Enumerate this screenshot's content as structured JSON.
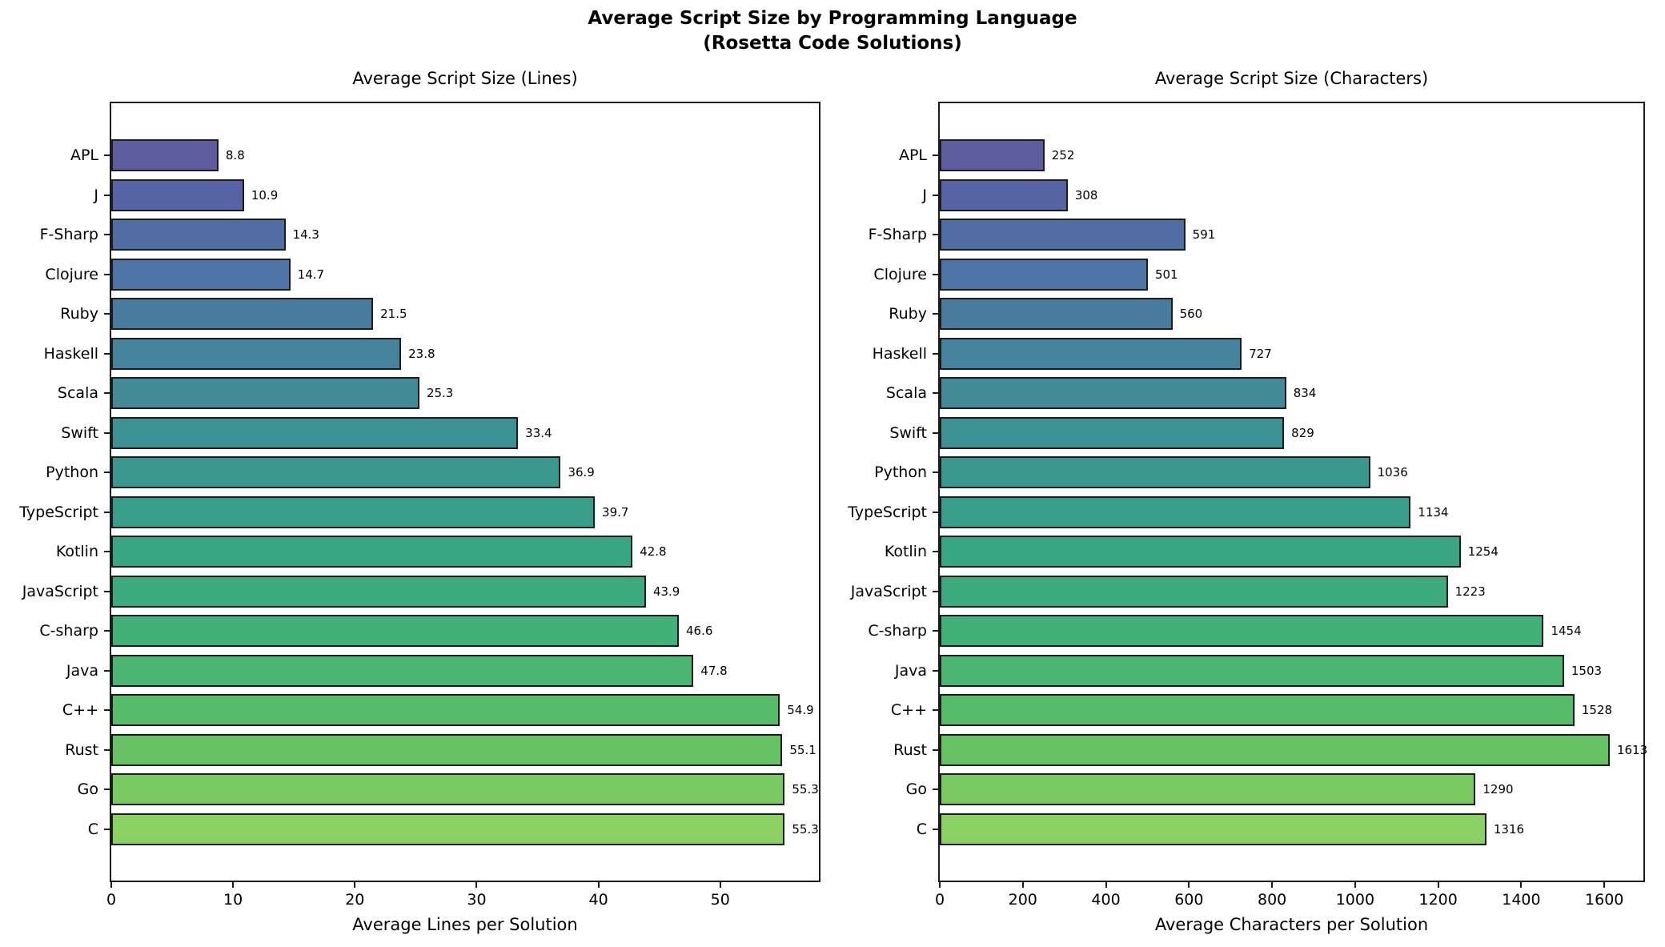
{
  "suptitle_line1": "Average Script Size by Programming Language",
  "suptitle_line2": "(Rosetta Code Solutions)",
  "text_color": "#000000",
  "bar_edge_color": "#1c1c1c",
  "palette": [
    "#5c5c9e",
    "#5663a5",
    "#516da4",
    "#4d74a4",
    "#497b9f",
    "#44839b",
    "#418a96",
    "#3e9192",
    "#3b988e",
    "#399e89",
    "#38a585",
    "#3bab7e",
    "#41b077",
    "#4ab671",
    "#56bc69",
    "#65c263",
    "#78c95f",
    "#8bd064"
  ],
  "chart_data": [
    {
      "type": "bar",
      "orientation": "horizontal",
      "title": "Average Script Size (Lines)",
      "xlabel": "Average Lines per Solution",
      "grid": false,
      "legend_position": "none",
      "categories": [
        "APL",
        "J",
        "F-Sharp",
        "Clojure",
        "Ruby",
        "Haskell",
        "Scala",
        "Swift",
        "Python",
        "TypeScript",
        "Kotlin",
        "JavaScript",
        "C-sharp",
        "Java",
        "C++",
        "Rust",
        "Go",
        "C"
      ],
      "values": [
        8.8,
        10.9,
        14.3,
        14.7,
        21.5,
        23.8,
        25.3,
        33.4,
        36.9,
        39.7,
        42.8,
        43.9,
        46.6,
        47.8,
        54.9,
        55.1,
        55.3,
        55.3
      ],
      "value_labels": [
        "8.8",
        "10.9",
        "14.3",
        "14.7",
        "21.5",
        "23.8",
        "25.3",
        "33.4",
        "36.9",
        "39.7",
        "42.8",
        "43.9",
        "46.6",
        "47.8",
        "54.9",
        "55.1",
        "55.3",
        "55.3"
      ],
      "xlim": [
        0,
        58.1
      ],
      "xticks": [
        0,
        10,
        20,
        30,
        40,
        50
      ]
    },
    {
      "type": "bar",
      "orientation": "horizontal",
      "title": "Average Script Size (Characters)",
      "xlabel": "Average Characters per Solution",
      "grid": false,
      "legend_position": "none",
      "categories": [
        "APL",
        "J",
        "F-Sharp",
        "Clojure",
        "Ruby",
        "Haskell",
        "Scala",
        "Swift",
        "Python",
        "TypeScript",
        "Kotlin",
        "JavaScript",
        "C-sharp",
        "Java",
        "C++",
        "Rust",
        "Go",
        "C"
      ],
      "values": [
        252,
        308,
        591,
        501,
        560,
        727,
        834,
        829,
        1036,
        1134,
        1254,
        1223,
        1454,
        1503,
        1528,
        1613,
        1290,
        1316
      ],
      "value_labels": [
        "252",
        "308",
        "591",
        "501",
        "560",
        "727",
        "834",
        "829",
        "1036",
        "1134",
        "1254",
        "1223",
        "1454",
        "1503",
        "1528",
        "1613",
        "1290",
        "1316"
      ],
      "xlim": [
        0,
        1694
      ],
      "xticks": [
        0,
        200,
        400,
        600,
        800,
        1000,
        1200,
        1400,
        1600
      ]
    }
  ]
}
